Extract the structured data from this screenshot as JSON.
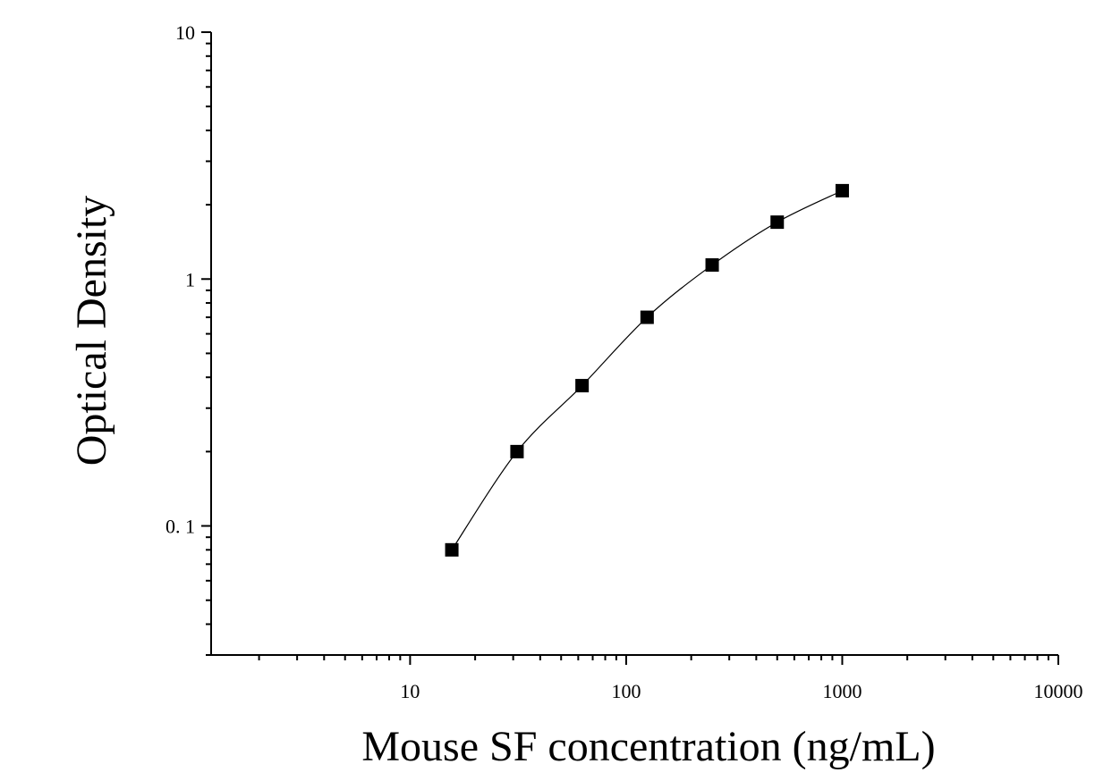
{
  "chart_data": {
    "type": "scatter",
    "xlabel": "Mouse SF concentration (ng/mL)",
    "ylabel": "Optical Density",
    "x_scale": "log",
    "y_scale": "log",
    "xlim": [
      1.2,
      10000
    ],
    "ylim": [
      0.03,
      10
    ],
    "x_ticks": [
      {
        "value": 10,
        "label": "10"
      },
      {
        "value": 100,
        "label": "100"
      },
      {
        "value": 1000,
        "label": "1000"
      },
      {
        "value": 10000,
        "label": "10000"
      }
    ],
    "y_ticks": [
      {
        "value": 0.1,
        "label": "0. 1"
      },
      {
        "value": 1,
        "label": "1"
      },
      {
        "value": 10,
        "label": "10"
      }
    ],
    "series": [
      {
        "marker": "square",
        "color": "#000000",
        "points": [
          {
            "x": 15.6,
            "y": 0.08
          },
          {
            "x": 31.25,
            "y": 0.2
          },
          {
            "x": 62.5,
            "y": 0.37
          },
          {
            "x": 125,
            "y": 0.7
          },
          {
            "x": 250,
            "y": 1.14
          },
          {
            "x": 500,
            "y": 1.7
          },
          {
            "x": 1000,
            "y": 2.28
          }
        ]
      }
    ],
    "fit_curve": true,
    "grid": false,
    "legend": false
  }
}
